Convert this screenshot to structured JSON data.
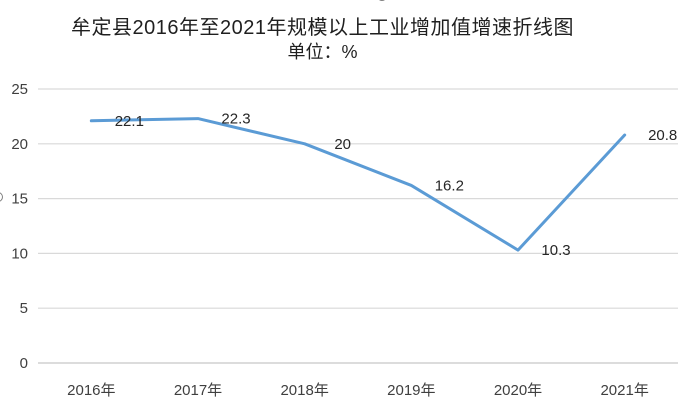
{
  "chart_data": {
    "type": "line",
    "title": "牟定县2016年至2021年规模以上工业增加值增速折线图",
    "subtitle": "单位：%",
    "unit": "%",
    "categories": [
      "2016年",
      "2017年",
      "2018年",
      "2019年",
      "2020年",
      "2021年"
    ],
    "values": [
      22.1,
      22.3,
      20,
      16.2,
      10.3,
      20.8
    ],
    "data_labels": [
      "22.1",
      "22.3",
      "20",
      "16.2",
      "10.3",
      "20.8"
    ],
    "xlabel": "",
    "ylabel": "",
    "ylim": [
      0,
      25
    ],
    "y_ticks": [
      0,
      5,
      10,
      15,
      20,
      25
    ],
    "grid": "horizontal",
    "legend": "none",
    "colors": {
      "line": "#5B9BD5",
      "gridline": "#D9D9D9",
      "axis_line": "#C6C6C6",
      "axis_text": "#3F3F3F",
      "label_text": "#262626",
      "title_text": "#1F1F1F"
    }
  }
}
